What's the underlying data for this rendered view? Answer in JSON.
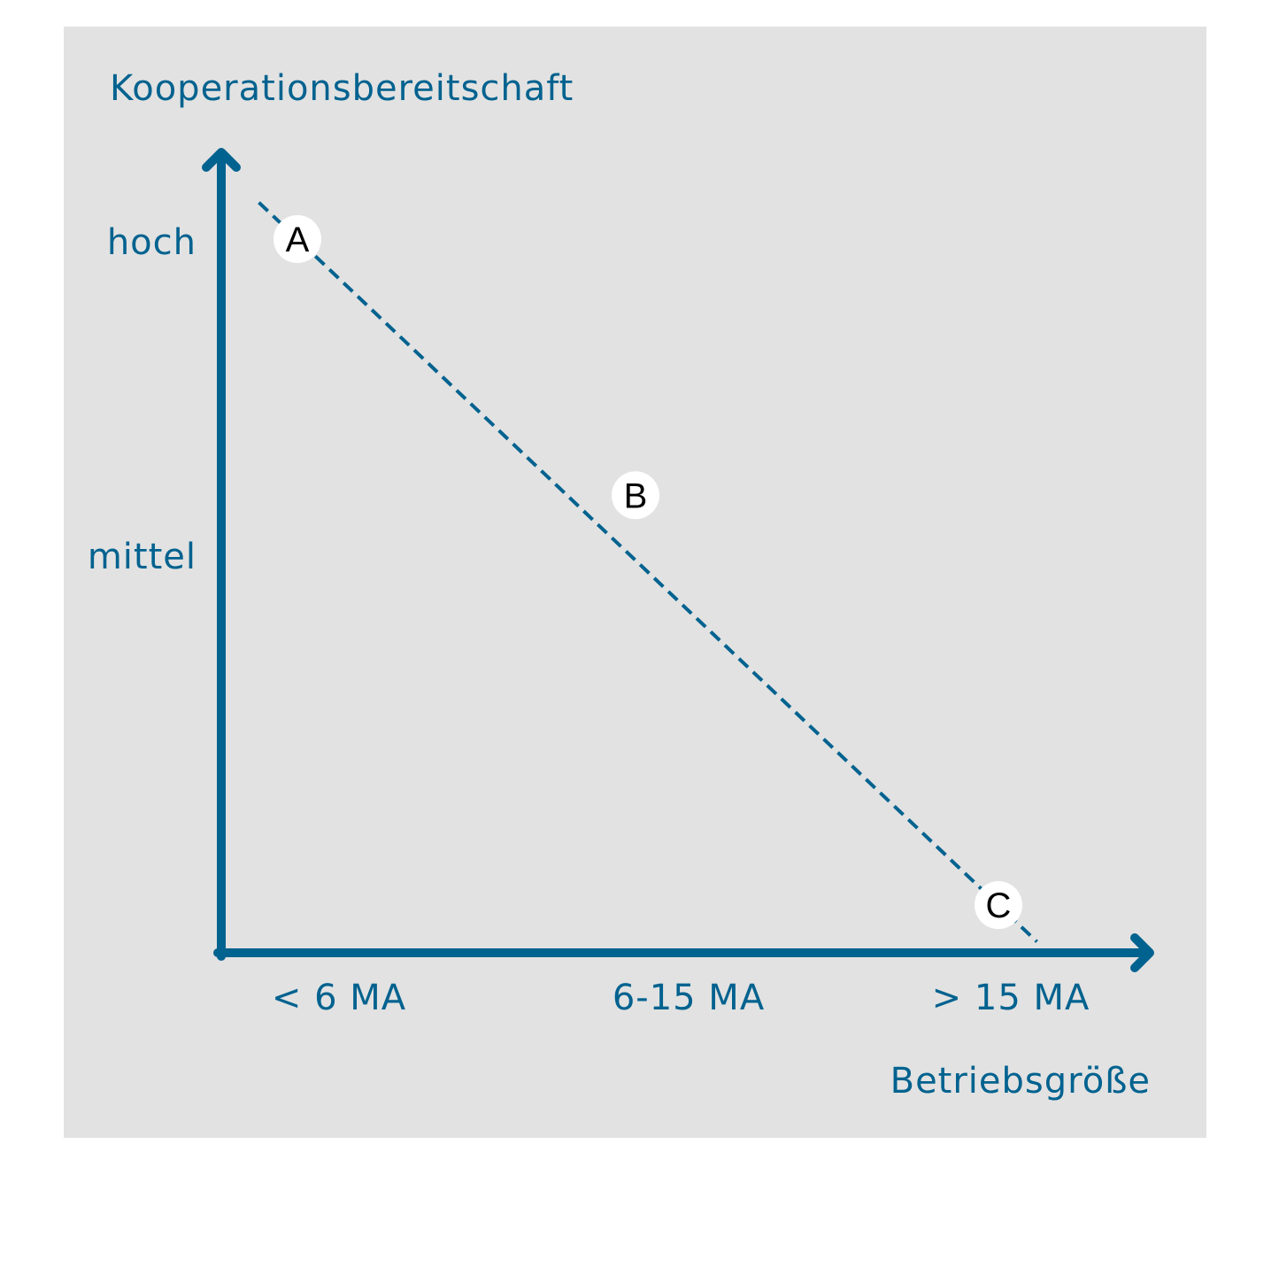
{
  "colors": {
    "accent": "#00628f",
    "panel_background": "#e2e2e2",
    "marker_fill": "#ffffff",
    "marker_text": "#000000"
  },
  "chart_data": {
    "type": "line",
    "title": "",
    "ylabel": "Kooperationsbereitschaft",
    "xlabel": "Betriebsgröße",
    "categories": [
      "< 6 MA",
      "6-15 MA",
      "> 15 MA"
    ],
    "y_tick_labels": [
      "hoch",
      "mittel"
    ],
    "ylim": [
      0,
      3
    ],
    "grid": false,
    "line_style": "dashed trend line",
    "points": [
      {
        "label": "A",
        "x": "< 6 MA",
        "y": 2.8
      },
      {
        "label": "B",
        "x": "6-15 MA",
        "y": 1.8
      },
      {
        "label": "C",
        "x": "> 15 MA",
        "y": 0.2
      }
    ]
  }
}
